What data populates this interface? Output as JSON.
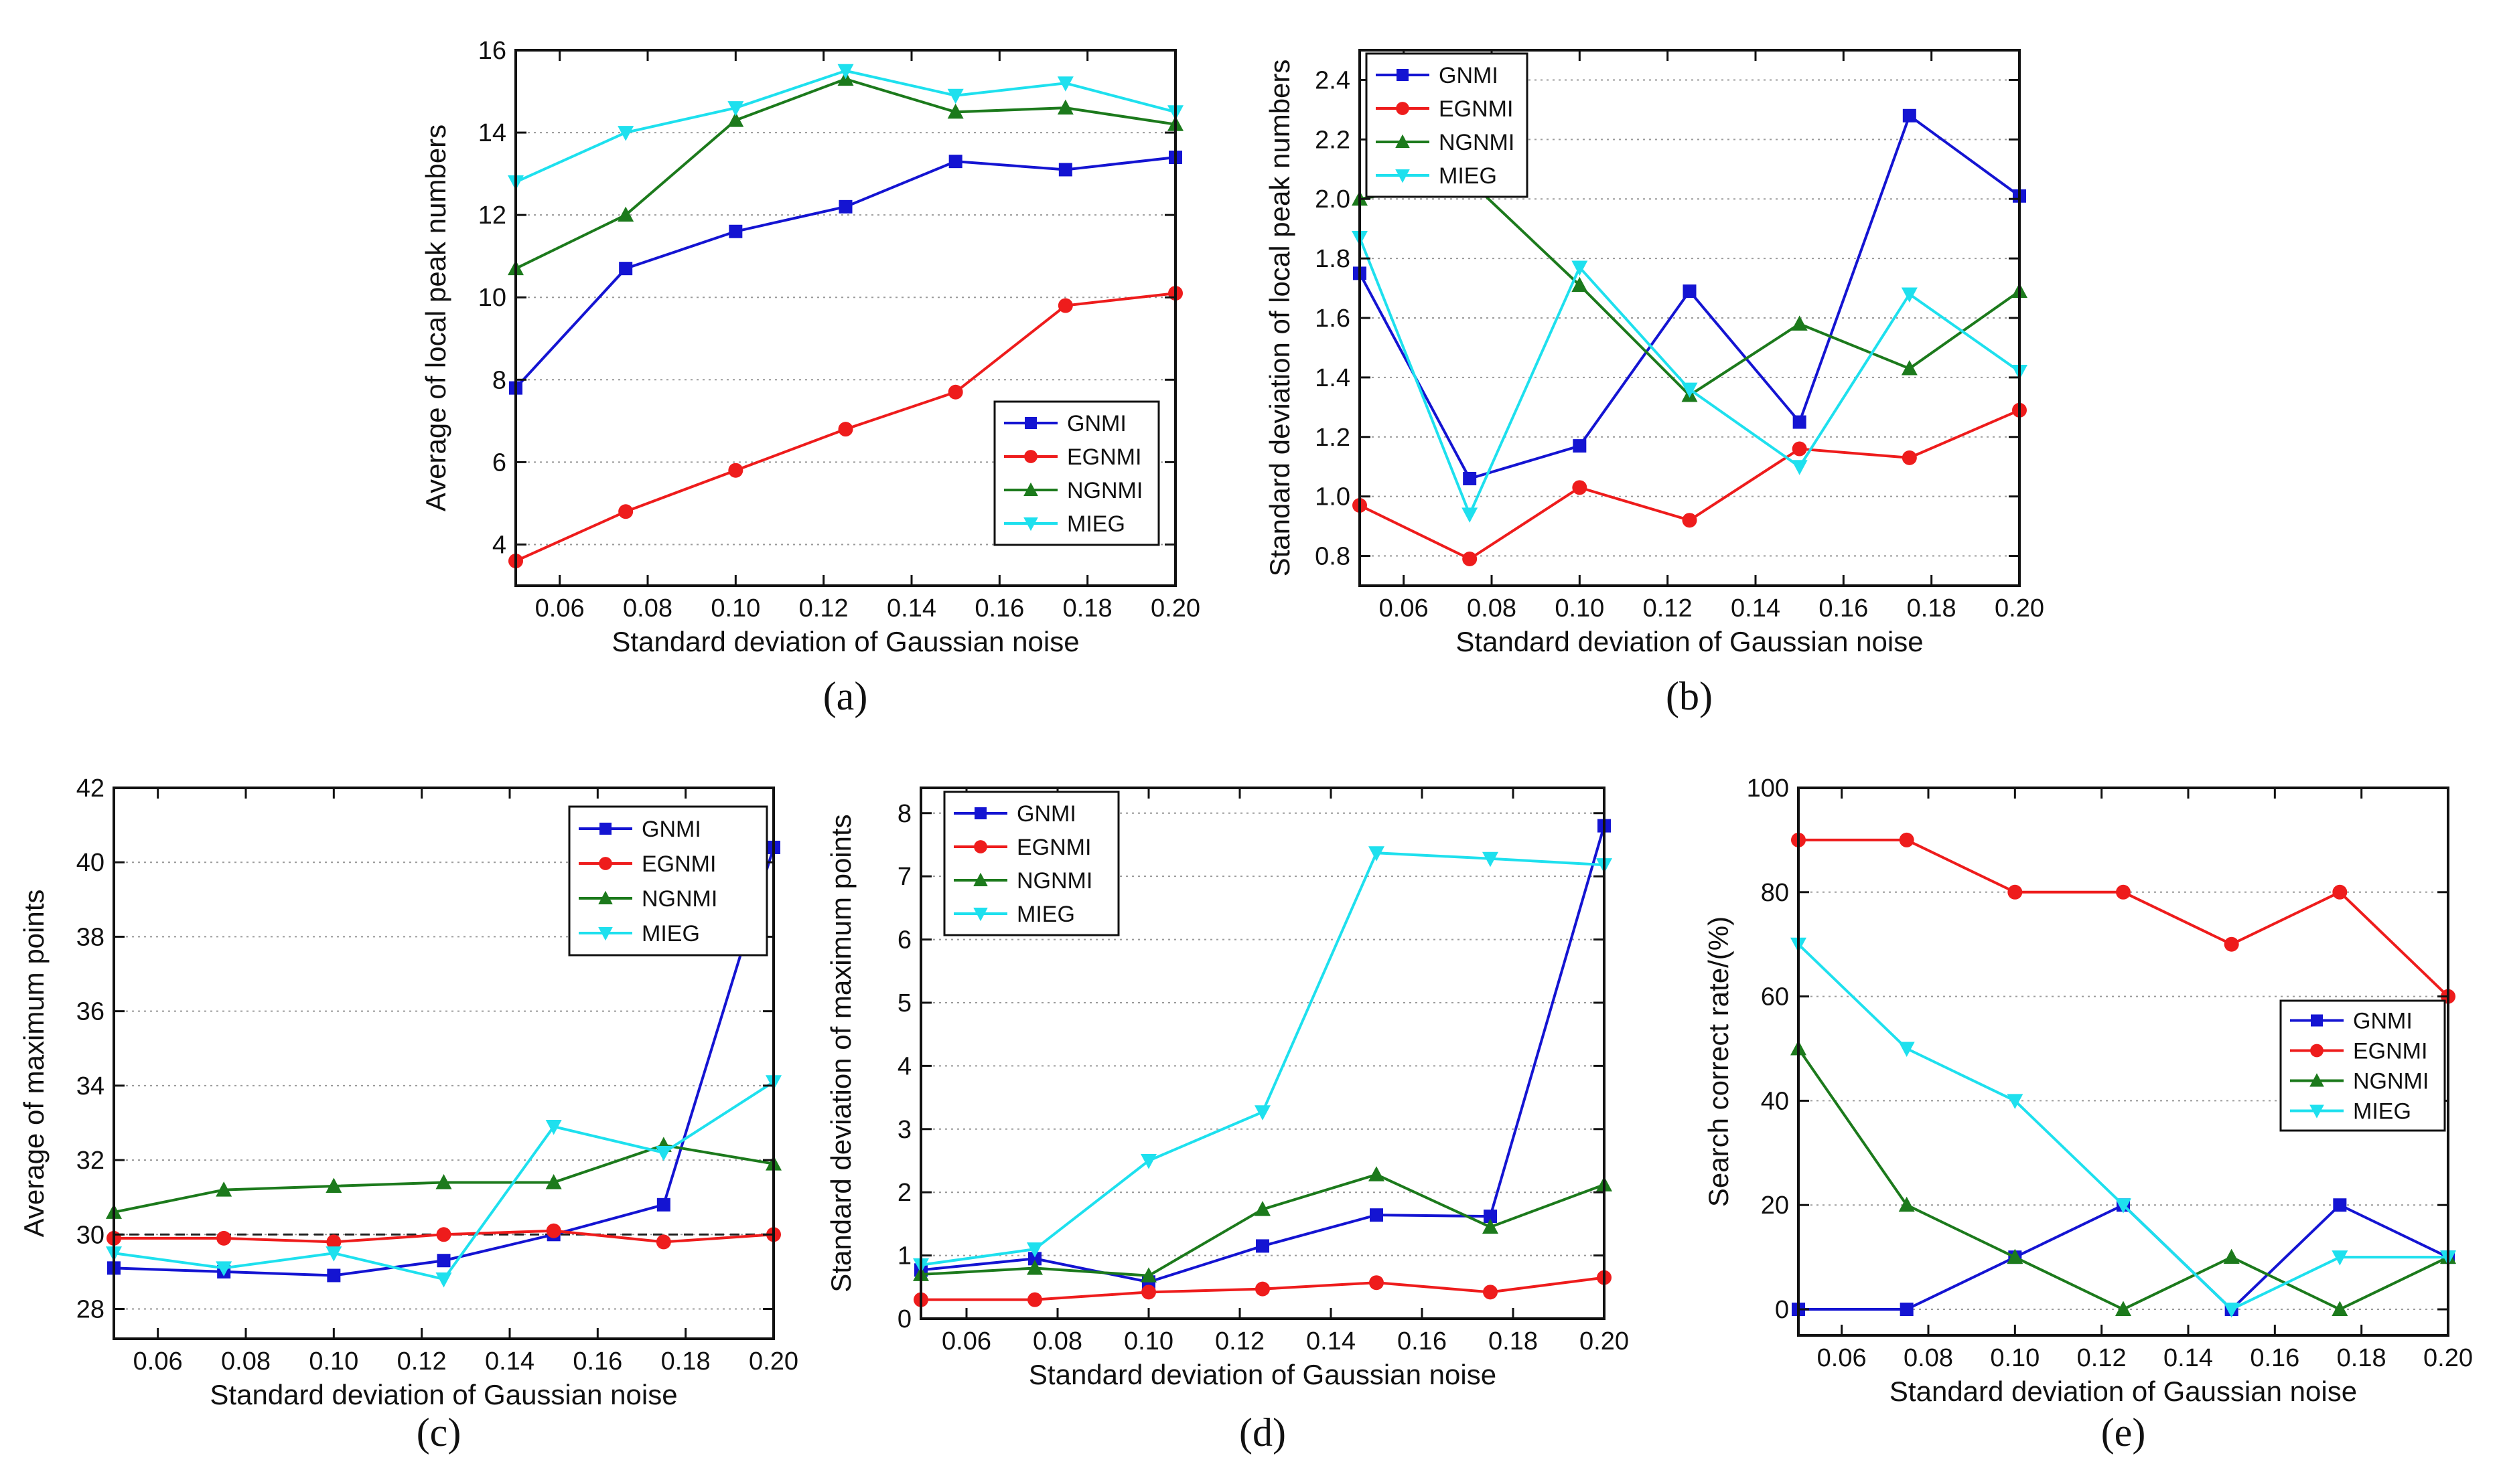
{
  "figure": {
    "panel_labels": [
      "(a)",
      "(b)",
      "(c)",
      "(d)",
      "(e)"
    ]
  },
  "chart_data": [
    {
      "type": "line",
      "panel": "(a)",
      "xlabel": "Standard deviation of Gaussian noise",
      "ylabel": "Average of local peak numbers",
      "xlim": [
        0.05,
        0.2
      ],
      "ylim": [
        3,
        16
      ],
      "x": [
        0.05,
        0.075,
        0.1,
        0.125,
        0.15,
        0.175,
        0.2
      ],
      "xticks": [
        0.06,
        0.08,
        0.1,
        0.12,
        0.14,
        0.16,
        0.18,
        0.2
      ],
      "xtick_labels": [
        "0.06",
        "0.08",
        "0.10",
        "0.12",
        "0.14",
        "0.16",
        "0.18",
        "0.20"
      ],
      "yticks": [
        4,
        6,
        8,
        10,
        12,
        14,
        16
      ],
      "ytick_labels": [
        "4",
        "6",
        "8",
        "10",
        "12",
        "14",
        "16"
      ],
      "grid": true,
      "legend_position": "bottom-right",
      "series": [
        {
          "name": "GNMI",
          "color": "#1414d2",
          "marker": "square",
          "values": [
            7.8,
            10.7,
            11.6,
            12.2,
            13.3,
            13.1,
            13.4
          ]
        },
        {
          "name": "EGNMI",
          "color": "#ee1c1c",
          "marker": "circle",
          "values": [
            3.6,
            4.8,
            5.8,
            6.8,
            7.7,
            9.8,
            10.1
          ]
        },
        {
          "name": "NGNMI",
          "color": "#1c7a1c",
          "marker": "triangle-up",
          "values": [
            10.7,
            12.0,
            14.3,
            15.3,
            14.5,
            14.6,
            14.2
          ]
        },
        {
          "name": "MIEG",
          "color": "#1ee0ee",
          "marker": "triangle-down",
          "values": [
            12.8,
            14.0,
            14.6,
            15.5,
            14.9,
            15.2,
            14.5
          ]
        }
      ]
    },
    {
      "type": "line",
      "panel": "(b)",
      "xlabel": "Standard deviation of Gaussian noise",
      "ylabel": "Standard deviation of local peak numbers",
      "xlim": [
        0.05,
        0.2
      ],
      "ylim": [
        0.7,
        2.5
      ],
      "x": [
        0.05,
        0.075,
        0.1,
        0.125,
        0.15,
        0.175,
        0.2
      ],
      "xticks": [
        0.06,
        0.08,
        0.1,
        0.12,
        0.14,
        0.16,
        0.18,
        0.2
      ],
      "xtick_labels": [
        "0.06",
        "0.08",
        "0.10",
        "0.12",
        "0.14",
        "0.16",
        "0.18",
        "0.20"
      ],
      "yticks": [
        0.8,
        1.0,
        1.2,
        1.4,
        1.6,
        1.8,
        2.0,
        2.2,
        2.4
      ],
      "ytick_labels": [
        "0.8",
        "1.0",
        "1.2",
        "1.4",
        "1.6",
        "1.8",
        "2.0",
        "2.2",
        "2.4"
      ],
      "grid": true,
      "legend_position": "top-left",
      "series": [
        {
          "name": "GNMI",
          "color": "#1414d2",
          "marker": "square",
          "values": [
            1.75,
            1.06,
            1.17,
            1.69,
            1.25,
            2.28,
            2.01
          ]
        },
        {
          "name": "EGNMI",
          "color": "#ee1c1c",
          "marker": "circle",
          "values": [
            0.97,
            0.79,
            1.03,
            0.92,
            1.16,
            1.13,
            1.29
          ]
        },
        {
          "name": "NGNMI",
          "color": "#1c7a1c",
          "marker": "triangle-up",
          "values": [
            2.0,
            2.06,
            1.71,
            1.34,
            1.58,
            1.43,
            1.69
          ]
        },
        {
          "name": "MIEG",
          "color": "#1ee0ee",
          "marker": "triangle-down",
          "values": [
            1.87,
            0.94,
            1.77,
            1.36,
            1.1,
            1.68,
            1.42
          ]
        }
      ]
    },
    {
      "type": "line",
      "panel": "(c)",
      "xlabel": "Standard deviation of Gaussian noise",
      "ylabel": "Average of maximum points",
      "xlim": [
        0.05,
        0.2
      ],
      "ylim": [
        27.2,
        42
      ],
      "x": [
        0.05,
        0.075,
        0.1,
        0.125,
        0.15,
        0.175,
        0.2
      ],
      "xticks": [
        0.06,
        0.08,
        0.1,
        0.12,
        0.14,
        0.16,
        0.18,
        0.2
      ],
      "xtick_labels": [
        "0.06",
        "0.08",
        "0.10",
        "0.12",
        "0.14",
        "0.16",
        "0.18",
        "0.20"
      ],
      "yticks": [
        28,
        30,
        32,
        34,
        36,
        38,
        40,
        42
      ],
      "ytick_labels": [
        "28",
        "30",
        "32",
        "34",
        "36",
        "38",
        "40",
        "42"
      ],
      "grid": true,
      "legend_position": "top-right",
      "reference_line": {
        "y": 30,
        "style": "dashed",
        "color": "#222222"
      },
      "series": [
        {
          "name": "GNMI",
          "color": "#1414d2",
          "marker": "square",
          "values": [
            29.1,
            29.0,
            28.9,
            29.3,
            30.0,
            30.8,
            40.4
          ]
        },
        {
          "name": "EGNMI",
          "color": "#ee1c1c",
          "marker": "circle",
          "values": [
            29.9,
            29.9,
            29.8,
            30.0,
            30.1,
            29.8,
            30.0
          ]
        },
        {
          "name": "NGNMI",
          "color": "#1c7a1c",
          "marker": "triangle-up",
          "values": [
            30.6,
            31.2,
            31.3,
            31.4,
            31.4,
            32.4,
            31.9
          ]
        },
        {
          "name": "MIEG",
          "color": "#1ee0ee",
          "marker": "triangle-down",
          "values": [
            29.5,
            29.1,
            29.5,
            28.8,
            32.9,
            32.2,
            34.1
          ]
        }
      ]
    },
    {
      "type": "line",
      "panel": "(d)",
      "xlabel": "Standard deviation of Gaussian noise",
      "ylabel": "Standard deviation of maximum points",
      "xlim": [
        0.05,
        0.2
      ],
      "ylim": [
        0,
        8.4
      ],
      "x": [
        0.05,
        0.075,
        0.1,
        0.125,
        0.15,
        0.175,
        0.2
      ],
      "xticks": [
        0.06,
        0.08,
        0.1,
        0.12,
        0.14,
        0.16,
        0.18,
        0.2
      ],
      "xtick_labels": [
        "0.06",
        "0.08",
        "0.10",
        "0.12",
        "0.14",
        "0.16",
        "0.18",
        "0.20"
      ],
      "yticks": [
        0,
        1,
        2,
        3,
        4,
        5,
        6,
        7,
        8
      ],
      "ytick_labels": [
        "0",
        "1",
        "2",
        "3",
        "4",
        "5",
        "6",
        "7",
        "8"
      ],
      "grid": true,
      "legend_position": "top-left",
      "series": [
        {
          "name": "GNMI",
          "color": "#1414d2",
          "marker": "square",
          "values": [
            0.77,
            0.95,
            0.58,
            1.15,
            1.64,
            1.62,
            7.8
          ]
        },
        {
          "name": "EGNMI",
          "color": "#ee1c1c",
          "marker": "circle",
          "values": [
            0.3,
            0.3,
            0.42,
            0.47,
            0.57,
            0.42,
            0.65
          ]
        },
        {
          "name": "NGNMI",
          "color": "#1c7a1c",
          "marker": "triangle-up",
          "values": [
            0.7,
            0.8,
            0.68,
            1.73,
            2.28,
            1.45,
            2.12
          ]
        },
        {
          "name": "MIEG",
          "color": "#1ee0ee",
          "marker": "triangle-down",
          "values": [
            0.85,
            1.1,
            2.5,
            3.27,
            7.37,
            7.28,
            7.18
          ]
        }
      ]
    },
    {
      "type": "line",
      "panel": "(e)",
      "xlabel": "Standard deviation of Gaussian noise",
      "ylabel": "Search correct rate/(%)",
      "xlim": [
        0.05,
        0.2
      ],
      "ylim": [
        -5,
        100
      ],
      "x": [
        0.05,
        0.075,
        0.1,
        0.125,
        0.15,
        0.175,
        0.2
      ],
      "xticks": [
        0.06,
        0.08,
        0.1,
        0.12,
        0.14,
        0.16,
        0.18,
        0.2
      ],
      "xtick_labels": [
        "0.06",
        "0.08",
        "0.10",
        "0.12",
        "0.14",
        "0.16",
        "0.18",
        "0.20"
      ],
      "yticks": [
        0,
        20,
        40,
        60,
        80,
        100
      ],
      "ytick_labels": [
        "0",
        "20",
        "40",
        "60",
        "80",
        "100"
      ],
      "grid": true,
      "legend_position": "right",
      "series": [
        {
          "name": "GNMI",
          "color": "#1414d2",
          "marker": "square",
          "values": [
            0,
            0,
            10,
            20,
            0,
            20,
            10
          ]
        },
        {
          "name": "EGNMI",
          "color": "#ee1c1c",
          "marker": "circle",
          "values": [
            90,
            90,
            80,
            80,
            70,
            80,
            60
          ]
        },
        {
          "name": "NGNMI",
          "color": "#1c7a1c",
          "marker": "triangle-up",
          "values": [
            50,
            20,
            10,
            0,
            10,
            0,
            10
          ]
        },
        {
          "name": "MIEG",
          "color": "#1ee0ee",
          "marker": "triangle-down",
          "values": [
            70,
            50,
            40,
            20,
            0,
            10,
            10
          ]
        }
      ]
    }
  ]
}
